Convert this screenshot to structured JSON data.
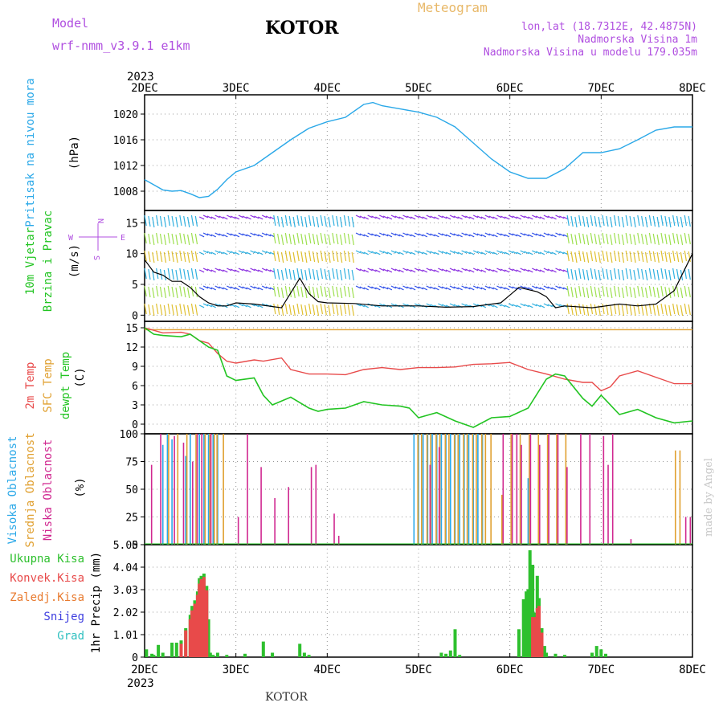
{
  "header": {
    "model_label": "Model",
    "model_version": "wrf-nmm_v3.9.1  e1km",
    "title": "KOTOR",
    "meteogram_label": "Meteogram",
    "lonlat": "lon,lat (18.7312E, 42.4875N)",
    "elevation": "Nadmorska Visina 1m",
    "model_elevation": "Nadmorska Visina u modelu 179.035m"
  },
  "footer": {
    "location": "KOTOR"
  },
  "watermark": "made by Angel",
  "colors": {
    "pressure": "#2aa8e8",
    "temp_2m": "#e84a4a",
    "sfc_temp": "#e0a030",
    "dewpoint": "#22c422",
    "high_cloud": "#2aa8e8",
    "mid_cloud": "#e0a030",
    "low_cloud": "#d02890",
    "precip_total": "#2ec02e",
    "precip_convective": "#e84a4a",
    "precip_frozen": "#e87a2e",
    "snow": "#4040e0",
    "hail": "#30c0c0",
    "wind_text": "#22c422",
    "units_text": "#000000",
    "wind_compass": "#b04fe0"
  },
  "chart_data": [
    {
      "type": "line",
      "panel": "pressure",
      "title": "",
      "ylabel": "Pritisak na nivou mora",
      "yunit": "(hPa)",
      "ylim": [
        1005,
        1023
      ],
      "yticks": [
        1008,
        1012,
        1016,
        1020
      ],
      "xticks_top_year": "2023",
      "xticks": [
        "2DEC",
        "3DEC",
        "4DEC",
        "5DEC",
        "6DEC",
        "7DEC",
        "8DEC"
      ],
      "xlim": [
        0,
        6
      ],
      "series": [
        {
          "x": [
            0,
            0.1,
            0.2,
            0.3,
            0.4,
            0.5,
            0.6,
            0.7,
            0.8,
            0.9,
            1.0,
            1.2,
            1.4,
            1.6,
            1.8,
            2.0,
            2.2,
            2.4,
            2.5,
            2.6,
            2.8,
            3.0,
            3.2,
            3.4,
            3.6,
            3.8,
            4.0,
            4.2,
            4.4,
            4.6,
            4.8,
            5.0,
            5.2,
            5.4,
            5.6,
            5.8,
            6.0
          ],
          "y": [
            1009.8,
            1009.0,
            1008.2,
            1008.0,
            1008.1,
            1007.6,
            1007.0,
            1007.2,
            1008.3,
            1009.8,
            1011.0,
            1012.0,
            1014.0,
            1016.0,
            1017.8,
            1018.8,
            1019.5,
            1021.5,
            1021.8,
            1021.3,
            1020.8,
            1020.3,
            1019.5,
            1018.0,
            1015.5,
            1013.0,
            1011.0,
            1010.0,
            1010.0,
            1011.5,
            1014.0,
            1014.0,
            1014.6,
            1016.0,
            1017.5,
            1018.0,
            1018.0
          ]
        }
      ]
    },
    {
      "type": "line",
      "panel": "wind",
      "title": "",
      "ylabel": [
        "10m Vjetar",
        "Brzina i Pravac"
      ],
      "yunit": "(m/s)",
      "compass": {
        "n": "N",
        "s": "S",
        "e": "E",
        "w": "W"
      },
      "ylim": [
        -1,
        17
      ],
      "yticks": [
        0,
        5,
        10,
        15
      ],
      "xlim": [
        0,
        6
      ],
      "series": [
        {
          "name": "wind speed",
          "x": [
            0,
            0.1,
            0.2,
            0.3,
            0.4,
            0.5,
            0.6,
            0.7,
            0.8,
            0.9,
            1.0,
            1.2,
            1.5,
            1.7,
            1.8,
            1.9,
            2.0,
            2.3,
            2.6,
            3.0,
            3.3,
            3.6,
            3.9,
            4.1,
            4.3,
            4.4,
            4.5,
            4.6,
            4.9,
            5.2,
            5.4,
            5.6,
            5.8,
            6.0
          ],
          "y": [
            9,
            7,
            6.5,
            5.5,
            5.5,
            4.5,
            3,
            2,
            1.5,
            1.5,
            2,
            1.8,
            1.2,
            6,
            3.5,
            2.2,
            2.0,
            1.9,
            1.5,
            1.5,
            1.3,
            1.4,
            2.0,
            4.5,
            3.8,
            3.0,
            1.2,
            1.5,
            1.2,
            1.8,
            1.5,
            1.8,
            4,
            10
          ]
        }
      ]
    },
    {
      "type": "line",
      "panel": "temperature",
      "title": "",
      "ylabel": [
        "2m Temp",
        "SFC Temp",
        "dewpt Temp"
      ],
      "yunit": "(C)",
      "ylim": [
        -1.5,
        16
      ],
      "yticks": [
        0,
        3,
        6,
        9,
        12,
        15
      ],
      "xlim": [
        0,
        6
      ],
      "series": [
        {
          "name": "2m Temp",
          "x": [
            0,
            0.1,
            0.2,
            0.4,
            0.5,
            0.6,
            0.7,
            0.8,
            0.9,
            1.0,
            1.2,
            1.3,
            1.5,
            1.6,
            1.8,
            2.0,
            2.2,
            2.4,
            2.6,
            2.8,
            3.0,
            3.2,
            3.4,
            3.6,
            3.8,
            4.0,
            4.2,
            4.4,
            4.6,
            4.8,
            4.9,
            5.0,
            5.1,
            5.2,
            5.4,
            5.6,
            5.8,
            6.0
          ],
          "y": [
            15,
            14.6,
            14.2,
            14.3,
            14.0,
            13.0,
            12.6,
            11.0,
            9.8,
            9.5,
            10.0,
            9.8,
            10.3,
            8.5,
            7.8,
            7.8,
            7.7,
            8.5,
            8.8,
            8.5,
            8.8,
            8.8,
            8.9,
            9.3,
            9.4,
            9.6,
            8.5,
            7.8,
            7.0,
            6.5,
            6.5,
            5.2,
            5.8,
            7.5,
            8.3,
            7.3,
            6.3,
            6.3
          ]
        },
        {
          "name": "SFC Temp",
          "x": [
            0,
            6
          ],
          "y": [
            14.7,
            14.7
          ]
        },
        {
          "name": "dewpt Temp",
          "x": [
            0,
            0.1,
            0.2,
            0.4,
            0.5,
            0.6,
            0.7,
            0.8,
            0.9,
            1.0,
            1.2,
            1.3,
            1.4,
            1.6,
            1.8,
            1.9,
            2.0,
            2.2,
            2.4,
            2.6,
            2.8,
            2.9,
            3.0,
            3.2,
            3.4,
            3.6,
            3.8,
            4.0,
            4.2,
            4.4,
            4.5,
            4.6,
            4.8,
            4.9,
            5.0,
            5.2,
            5.4,
            5.6,
            5.8,
            6.0
          ],
          "y": [
            15,
            14.0,
            13.8,
            13.6,
            14.0,
            13.0,
            12.0,
            11.5,
            7.5,
            6.8,
            7.2,
            4.5,
            3.0,
            4.2,
            2.5,
            2.0,
            2.3,
            2.5,
            3.5,
            3.0,
            2.8,
            2.5,
            1.0,
            1.8,
            0.5,
            -0.5,
            1.0,
            1.2,
            2.5,
            7.0,
            7.8,
            7.5,
            4.0,
            2.8,
            4.5,
            1.5,
            2.3,
            1.0,
            0.2,
            0.5
          ]
        }
      ]
    },
    {
      "type": "bar",
      "panel": "cloud",
      "title": "",
      "ylabel": [
        "Visoka Oblacnost",
        "Srednja Oblacnost",
        "Niska Oblacnost"
      ],
      "yunit": "(%)",
      "ylim": [
        0,
        100
      ],
      "yticks": [
        0,
        25,
        50,
        75,
        100
      ],
      "xlim": [
        0,
        6
      ],
      "series": [
        {
          "name": "Visoka Oblacnost",
          "x": [
            0.2,
            0.25,
            0.3,
            0.45,
            0.5,
            0.6,
            0.65,
            0.7,
            0.75,
            0.8,
            2.95,
            3.0,
            3.05,
            3.1,
            3.15,
            3.2,
            3.25,
            3.3,
            3.35,
            3.4,
            3.45,
            3.5,
            3.55,
            3.6,
            3.65,
            3.7,
            4.2
          ],
          "y": [
            90,
            100,
            95,
            80,
            100,
            100,
            100,
            100,
            100,
            100,
            100,
            100,
            100,
            100,
            100,
            100,
            100,
            100,
            100,
            100,
            100,
            100,
            100,
            100,
            100,
            100,
            60
          ]
        },
        {
          "name": "Srednja Oblacnost",
          "x": [
            0.25,
            0.35,
            0.45,
            0.55,
            0.65,
            0.7,
            0.75,
            0.78,
            0.85,
            2.98,
            3.02,
            3.08,
            3.12,
            3.18,
            3.22,
            3.28,
            3.32,
            3.38,
            3.42,
            3.48,
            3.52,
            3.58,
            3.62,
            3.68,
            3.72,
            3.78,
            3.9,
            4.0,
            4.1,
            4.2,
            4.3,
            4.4,
            4.5,
            4.6,
            5.8,
            5.85
          ],
          "y": [
            100,
            100,
            100,
            100,
            100,
            100,
            100,
            100,
            100,
            100,
            100,
            100,
            100,
            100,
            100,
            100,
            100,
            100,
            100,
            100,
            100,
            100,
            100,
            100,
            100,
            100,
            45,
            100,
            100,
            100,
            100,
            100,
            100,
            100,
            85,
            85
          ]
        },
        {
          "name": "Niska Oblacnost",
          "x": [
            0.05,
            0.15,
            0.3,
            0.4,
            0.5,
            0.55,
            0.6,
            0.7,
            1.0,
            1.1,
            1.25,
            1.4,
            1.55,
            1.8,
            1.85,
            2.05,
            2.1,
            3.1,
            3.2,
            3.9,
            4.0,
            4.05,
            4.1,
            4.2,
            4.3,
            4.4,
            4.5,
            4.6,
            4.75,
            4.85,
            5.0,
            5.05,
            5.1,
            5.3,
            5.9,
            5.95
          ],
          "y": [
            72,
            100,
            98,
            92,
            75,
            100,
            100,
            100,
            25,
            100,
            70,
            42,
            52,
            70,
            72,
            28,
            8,
            72,
            88,
            100,
            100,
            100,
            90,
            100,
            90,
            100,
            100,
            70,
            100,
            100,
            98,
            72,
            100,
            5,
            25,
            25
          ]
        }
      ]
    },
    {
      "type": "bar",
      "panel": "precip",
      "title": "",
      "ylabel": "1hr Precip (mm)",
      "legend": [
        "Ukupna Kisa",
        "Konvek.Kisa",
        "Zaledj.Kisa",
        "Snijeg",
        "Grad"
      ],
      "ylim": [
        0,
        5.05
      ],
      "yticks": [
        0,
        1.01,
        2.02,
        3.03,
        4.04,
        5.05
      ],
      "xticks_bottom_year": "2023",
      "xlim": [
        0,
        6
      ],
      "series": [
        {
          "name": "Ukupna Kisa",
          "x": [
            0.02,
            0.08,
            0.1,
            0.15,
            0.2,
            0.3,
            0.35,
            0.4,
            0.45,
            0.5,
            0.52,
            0.55,
            0.58,
            0.6,
            0.62,
            0.65,
            0.68,
            0.7,
            0.72,
            0.75,
            0.8,
            0.9,
            1.1,
            1.3,
            1.4,
            1.7,
            1.75,
            1.8,
            3.25,
            3.3,
            3.35,
            3.4,
            3.45,
            4.1,
            4.15,
            4.18,
            4.2,
            4.22,
            4.25,
            4.28,
            4.3,
            4.32,
            4.35,
            4.38,
            4.4,
            4.5,
            4.6,
            4.9,
            4.95,
            5.0,
            5.05
          ],
          "y": [
            0.35,
            0.15,
            0.1,
            0.55,
            0.2,
            0.65,
            0.65,
            0.75,
            1.3,
            1.9,
            2.3,
            2.55,
            2.95,
            3.55,
            3.65,
            3.75,
            3.2,
            1.7,
            0.2,
            0.1,
            0.2,
            0.1,
            0.15,
            0.7,
            0.2,
            0.6,
            0.2,
            0.1,
            0.2,
            0.15,
            0.3,
            1.25,
            0.1,
            1.25,
            2.6,
            2.95,
            3.05,
            4.8,
            4.15,
            2.0,
            3.65,
            2.65,
            1.3,
            0.5,
            0.2,
            0.15,
            0.1,
            0.2,
            0.5,
            0.35,
            0.15
          ]
        },
        {
          "name": "Konvek.Kisa",
          "x": [
            0.4,
            0.45,
            0.5,
            0.52,
            0.55,
            0.58,
            0.6,
            0.62,
            0.65,
            0.68,
            4.25,
            4.28,
            4.3,
            4.32,
            4.35
          ],
          "y": [
            0.6,
            1.2,
            1.7,
            2.1,
            2.4,
            2.8,
            3.3,
            3.5,
            3.6,
            3.0,
            1.8,
            1.8,
            2.2,
            2.3,
            1.1
          ]
        },
        {
          "name": "Zaledj.Kisa",
          "x": [],
          "y": []
        },
        {
          "name": "Snijeg",
          "x": [],
          "y": []
        },
        {
          "name": "Grad",
          "x": [],
          "y": []
        }
      ]
    }
  ]
}
